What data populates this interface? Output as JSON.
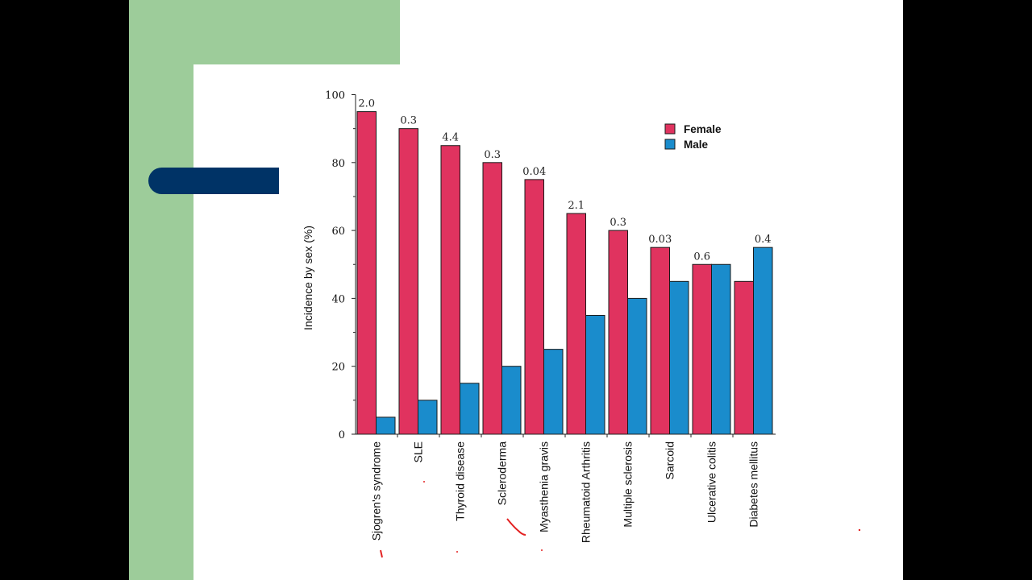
{
  "colors": {
    "female": "#e0335f",
    "male": "#1a8ccc",
    "green": "#9dcc9a",
    "navy": "#003366",
    "ink": "#e32222"
  },
  "chart_data": {
    "type": "bar",
    "ylabel": "Incidence by sex (%)",
    "ylim": [
      0,
      100
    ],
    "yticks": [
      0,
      20,
      40,
      60,
      80,
      100
    ],
    "legend": "top-right",
    "categories": [
      "Sjogren's syndrome",
      "SLE",
      "Thyroid disease",
      "Scleroderma",
      "Myasthenia gravis",
      "Rheumatoid Arthritis",
      "Multiple sclerosis",
      "Sarcoid",
      "Ulcerative colitis",
      "Diabetes mellitus"
    ],
    "series": [
      {
        "name": "Female",
        "values": [
          95,
          90,
          85,
          80,
          75,
          65,
          60,
          55,
          50,
          45
        ]
      },
      {
        "name": "Male",
        "values": [
          5,
          10,
          15,
          20,
          25,
          35,
          40,
          45,
          50,
          55
        ]
      }
    ],
    "annotations": [
      "2.0",
      "0.3",
      "4.4",
      "0.3",
      "0.04",
      "2.1",
      "0.3",
      "0.03",
      "0.6",
      "0.4"
    ]
  }
}
